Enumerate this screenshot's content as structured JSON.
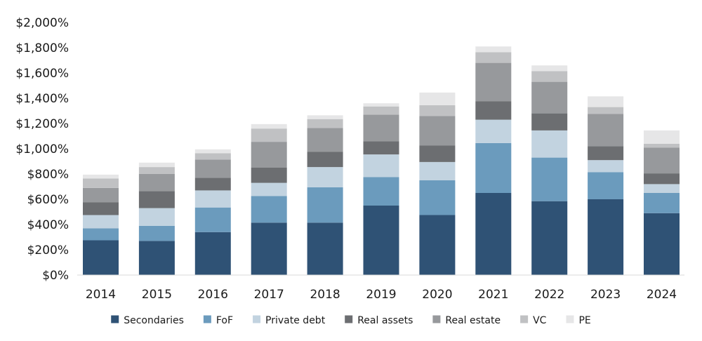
{
  "chart_data": {
    "type": "bar",
    "stacked": true,
    "categories": [
      "2014",
      "2015",
      "2016",
      "2017",
      "2018",
      "2019",
      "2020",
      "2021",
      "2022",
      "2023",
      "2024"
    ],
    "ylim": [
      0,
      2000
    ],
    "y_tick_values": [
      0,
      200,
      400,
      600,
      800,
      1000,
      1200,
      1400,
      1600,
      1800,
      2000
    ],
    "y_tick_labels": [
      "$0%",
      "$200%",
      "$400%",
      "$600%",
      "$800%",
      "$1,000%",
      "$1,200%",
      "$1,400%",
      "$1,600%",
      "$1,800%",
      "$2,000%"
    ],
    "grid": false,
    "legend_position": "bottom",
    "series": [
      {
        "name": "Secondaries",
        "color": "#2f5275",
        "values": [
          275,
          270,
          340,
          415,
          415,
          550,
          475,
          650,
          585,
          600,
          490
        ]
      },
      {
        "name": "FoF",
        "color": "#6b9bbd",
        "values": [
          95,
          120,
          195,
          210,
          280,
          225,
          275,
          395,
          345,
          215,
          160
        ]
      },
      {
        "name": "Private debt",
        "color": "#c2d3e0",
        "values": [
          105,
          140,
          135,
          105,
          160,
          180,
          145,
          185,
          215,
          95,
          70
        ]
      },
      {
        "name": "Real assets",
        "color": "#6c6e71",
        "values": [
          100,
          135,
          100,
          120,
          120,
          105,
          130,
          145,
          135,
          110,
          85
        ]
      },
      {
        "name": "Real estate",
        "color": "#97999c",
        "values": [
          115,
          135,
          145,
          205,
          190,
          210,
          235,
          305,
          250,
          255,
          205
        ]
      },
      {
        "name": "VC",
        "color": "#c0c1c3",
        "values": [
          75,
          55,
          50,
          105,
          70,
          65,
          85,
          85,
          85,
          55,
          30
        ]
      },
      {
        "name": "PE",
        "color": "#e6e6e7",
        "values": [
          30,
          35,
          30,
          35,
          30,
          25,
          100,
          45,
          45,
          85,
          105
        ]
      }
    ]
  }
}
